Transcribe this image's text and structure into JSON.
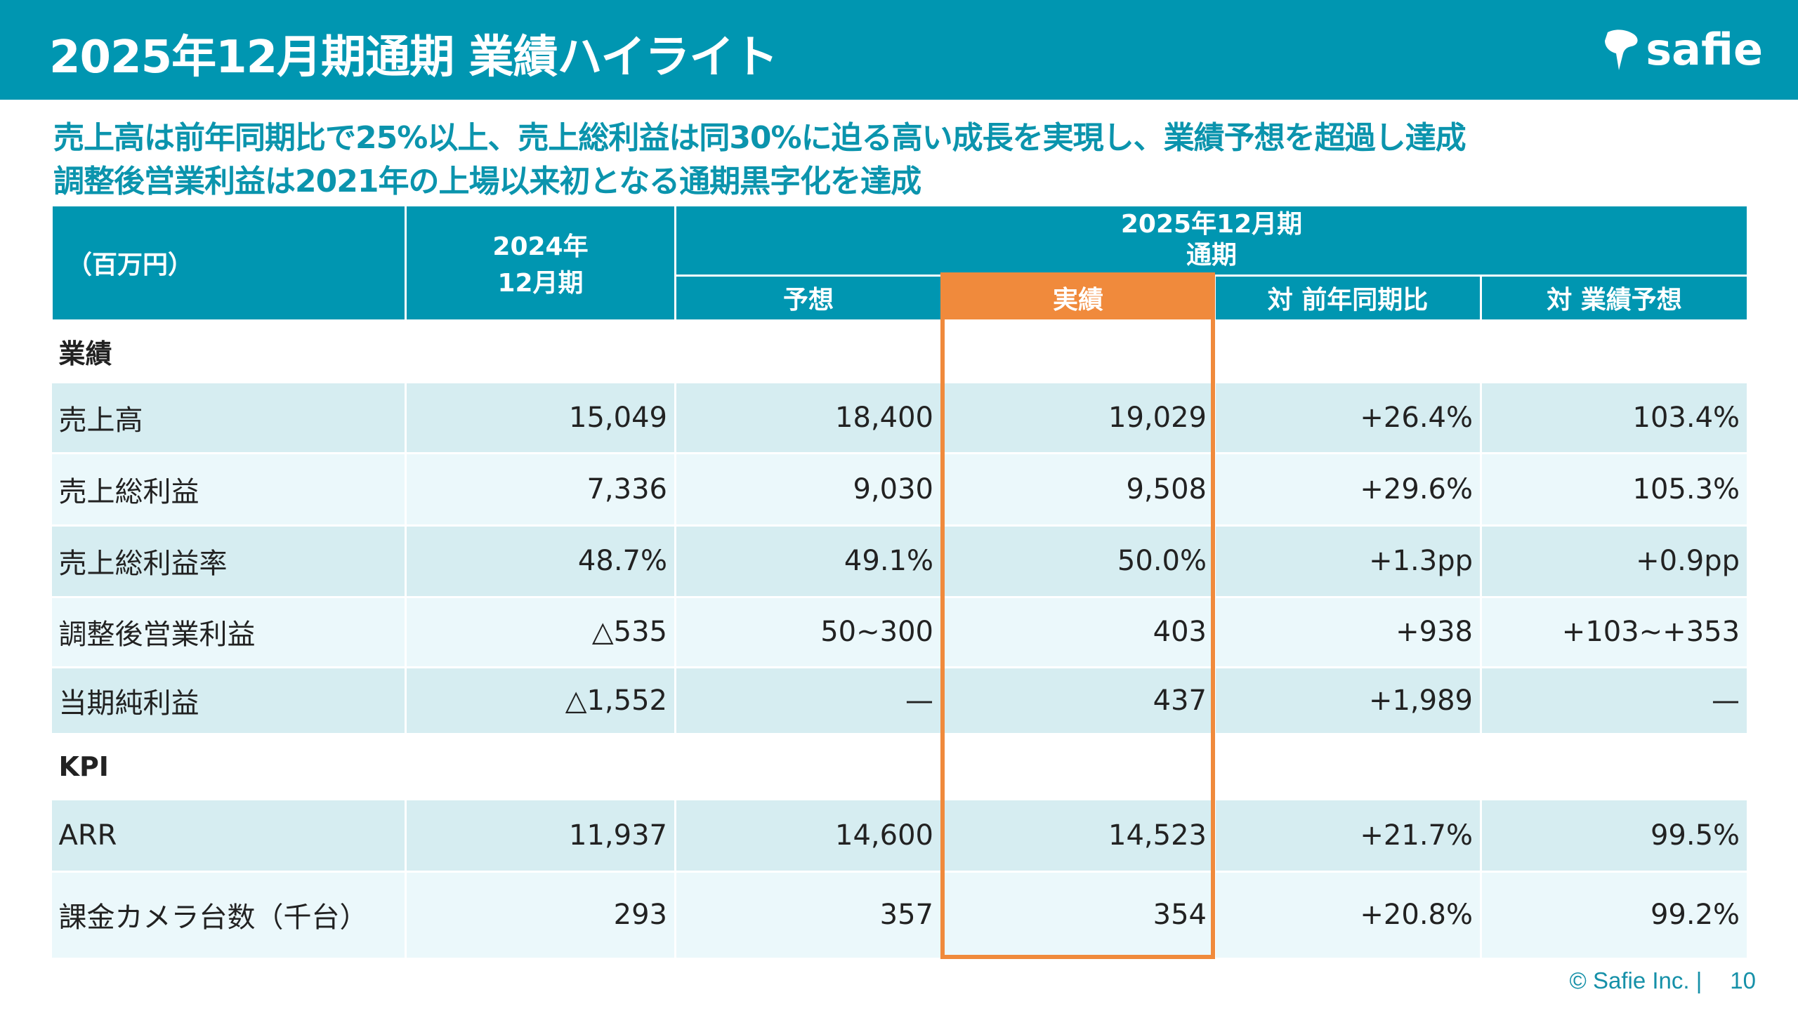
{
  "header": {
    "title": "2025年12月期通期 業績ハイライト",
    "logo_text": "safie",
    "color": "#0096b1"
  },
  "summary": [
    "売上高は前年同期比で25%以上、売上総利益は同30%に迫る高い成長を実現し、業績予想を超過し達成",
    "調整後営業利益は2021年の上場以来初となる通期黒字化を達成"
  ],
  "table": {
    "unit": "（百万円）",
    "prev_period": [
      "2024年",
      "12月期"
    ],
    "current_period": [
      "2025年12月期",
      "通期"
    ],
    "columns": [
      "予想",
      "実績",
      "対 前年同期比",
      "対 業績予想"
    ],
    "highlight_color": "#f08a3c",
    "sections": [
      {
        "name": "業績",
        "rows": [
          {
            "label": "売上高",
            "values": [
              "15,049",
              "18,400",
              "19,029",
              "+26.4%",
              "103.4%"
            ]
          },
          {
            "label": "売上総利益",
            "values": [
              "7,336",
              "9,030",
              "9,508",
              "+29.6%",
              "105.3%"
            ]
          },
          {
            "label": "売上総利益率",
            "values": [
              "48.7%",
              "49.1%",
              "50.0%",
              "+1.3pp",
              "+0.9pp"
            ]
          },
          {
            "label": "調整後営業利益",
            "values": [
              "△535",
              "50~300",
              "403",
              "+938",
              "+103~+353"
            ]
          },
          {
            "label": "当期純利益",
            "values": [
              "△1,552",
              "—",
              "437",
              "+1,989",
              "—"
            ]
          }
        ]
      },
      {
        "name": "KPI",
        "rows": [
          {
            "label": "ARR",
            "values": [
              "11,937",
              "14,600",
              "14,523",
              "+21.7%",
              "99.5%"
            ]
          },
          {
            "label": "課金カメラ台数（千台）",
            "values": [
              "293",
              "357",
              "354",
              "+20.8%",
              "99.2%"
            ]
          }
        ]
      }
    ]
  },
  "footer": {
    "copyright": "© Safie Inc. |",
    "page": "10"
  }
}
